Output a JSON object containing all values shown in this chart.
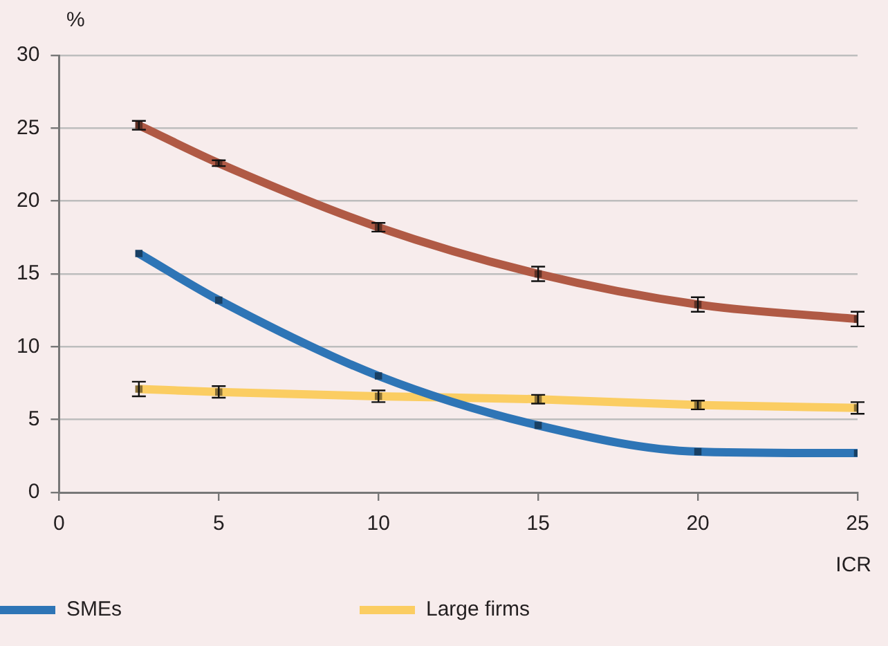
{
  "chart_data": {
    "type": "line",
    "xlabel": "ICR",
    "ylabel": "%",
    "x": [
      2.5,
      5,
      10,
      15,
      20,
      25
    ],
    "xlim": [
      0,
      25
    ],
    "xticks": [
      0,
      5,
      10,
      15,
      20,
      25
    ],
    "ylim": [
      0,
      30
    ],
    "yticks": [
      0,
      5,
      10,
      15,
      20,
      25,
      30
    ],
    "grid": "y",
    "legend": "bottom left",
    "line_style": "solid",
    "marker": "square",
    "series": [
      {
        "color": "#b05a45",
        "colors": [
          "#613226",
          "#613226",
          "#613226",
          "#613226",
          "#613226",
          "#613226"
        ],
        "values": [
          25.2,
          22.6,
          18.2,
          15.0,
          12.9,
          11.9
        ],
        "errors": [
          0.3,
          0.2,
          0.3,
          0.5,
          0.5,
          0.5
        ]
      },
      {
        "name": "SMEs",
        "color": "#2e75b6",
        "colors": [
          "#194064",
          "#194064",
          "#194064",
          "#194064",
          "#194064",
          "#194064"
        ],
        "values": [
          16.4,
          13.2,
          8.0,
          4.6,
          2.8,
          2.7
        ]
      },
      {
        "name": "Large firms",
        "color": "#fbcd62",
        "colors": [
          "#8a7136",
          "#8a7136",
          "#8a7136",
          "#8a7136",
          "#8a7136",
          "#8a7136"
        ],
        "values": [
          7.1,
          6.9,
          6.6,
          6.4,
          6.0,
          5.8
        ],
        "errors": [
          0.5,
          0.4,
          0.4,
          0.3,
          0.3,
          0.4
        ]
      }
    ]
  }
}
